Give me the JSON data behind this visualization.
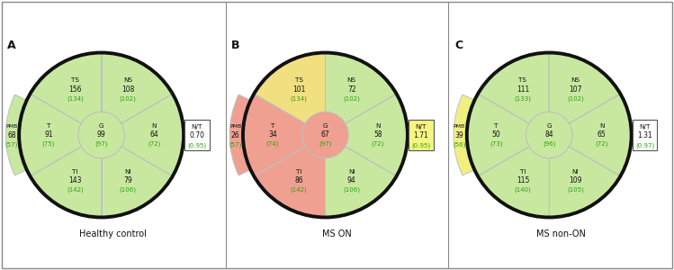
{
  "charts": [
    {
      "label": "A",
      "title": "Healthy control",
      "sectors": {
        "TS": {
          "value": "156",
          "norm": "134",
          "color": "#c8e8a0"
        },
        "NS": {
          "value": "108",
          "norm": "102",
          "color": "#c8e8a0"
        },
        "N": {
          "value": "64",
          "norm": "72",
          "color": "#c8e8a0"
        },
        "NI": {
          "value": "79",
          "norm": "106",
          "color": "#c8e8a0"
        },
        "TI": {
          "value": "143",
          "norm": "142",
          "color": "#c8e8a0"
        },
        "T": {
          "value": "91",
          "norm": "75",
          "color": "#c8e8a0"
        },
        "G": {
          "value": "99",
          "norm": "97",
          "color": "#c8e8a0"
        },
        "PMB": {
          "value": "68",
          "norm": "57",
          "color": "#c8e8a0"
        }
      },
      "nt_value": "0.70",
      "nt_norm": "(0.95)",
      "nt_bg": "#ffffff"
    },
    {
      "label": "B",
      "title": "MS ON",
      "sectors": {
        "TS": {
          "value": "101",
          "norm": "134",
          "color": "#f0e080"
        },
        "NS": {
          "value": "72",
          "norm": "102",
          "color": "#c8e8a0"
        },
        "N": {
          "value": "58",
          "norm": "72",
          "color": "#c8e8a0"
        },
        "NI": {
          "value": "94",
          "norm": "106",
          "color": "#c8e8a0"
        },
        "TI": {
          "value": "86",
          "norm": "142",
          "color": "#f0a090"
        },
        "T": {
          "value": "34",
          "norm": "74",
          "color": "#f0a090"
        },
        "G": {
          "value": "67",
          "norm": "97",
          "color": "#f0a090"
        },
        "PMB": {
          "value": "26",
          "norm": "57",
          "color": "#f0a090"
        }
      },
      "nt_value": "1.71",
      "nt_norm": "(0.95)",
      "nt_bg": "#f5f580"
    },
    {
      "label": "C",
      "title": "MS non-ON",
      "sectors": {
        "TS": {
          "value": "111",
          "norm": "133",
          "color": "#c8e8a0"
        },
        "NS": {
          "value": "107",
          "norm": "102",
          "color": "#c8e8a0"
        },
        "N": {
          "value": "65",
          "norm": "72",
          "color": "#c8e8a0"
        },
        "NI": {
          "value": "109",
          "norm": "105",
          "color": "#c8e8a0"
        },
        "TI": {
          "value": "115",
          "norm": "140",
          "color": "#c8e8a0"
        },
        "T": {
          "value": "50",
          "norm": "73",
          "color": "#c8e8a0"
        },
        "G": {
          "value": "84",
          "norm": "96",
          "color": "#c8e8a0"
        },
        "PMB": {
          "value": "39",
          "norm": "56",
          "color": "#f0f080"
        }
      },
      "nt_value": "1.31",
      "nt_norm": "(0.97)",
      "nt_bg": "#ffffff"
    }
  ],
  "green_text": "#2da010",
  "black_text": "#111111",
  "sep_color": "#c0c0c0",
  "outer_ring_color": "#111111",
  "bg_color": "#ffffff",
  "border_color": "#aaaaaa"
}
